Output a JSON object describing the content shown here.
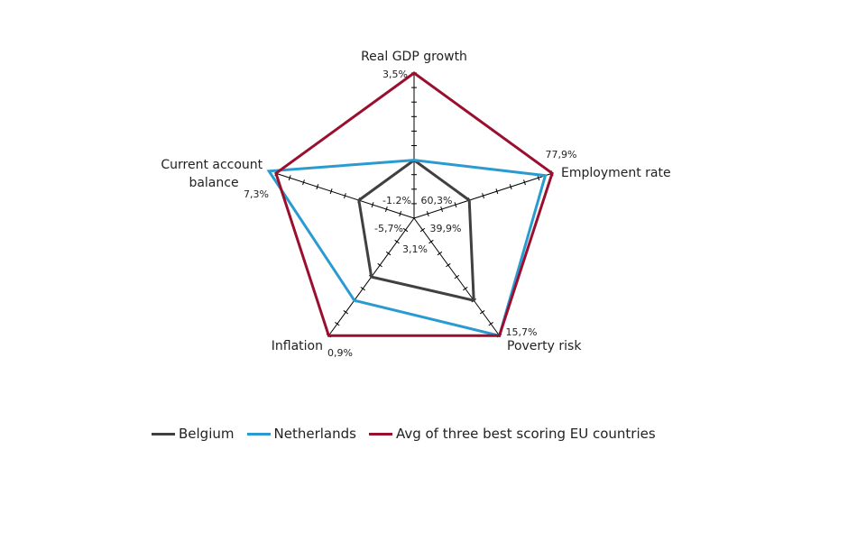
{
  "chart_data": {
    "type": "radar",
    "axes": [
      {
        "name": "Real GDP growth",
        "min_label": "-1.2%",
        "max_label": "3,5%"
      },
      {
        "name": "Employment rate",
        "min_label": "60,3%",
        "max_label": "77,9%"
      },
      {
        "name": "Poverty risk",
        "min_label": "39,9%",
        "max_label": "15,7%"
      },
      {
        "name": "Inflation",
        "min_label": "3,1%",
        "max_label": "0,9%"
      },
      {
        "name": "Current account balance",
        "min_label": "-5,7%",
        "max_label": "7,3%"
      }
    ],
    "axis_min": 0,
    "axis_max": 1,
    "tick_count": 10,
    "series": [
      {
        "name": "Belgium",
        "color": "#404040",
        "values": [
          0.4,
          0.4,
          0.7,
          0.5,
          0.4
        ]
      },
      {
        "name": "Netherlands",
        "color": "#2a9bd1",
        "values": [
          0.4,
          0.95,
          1.0,
          0.7,
          1.05
        ]
      },
      {
        "name": "Avg of three best scoring EU countries",
        "color": "#9a0f2e",
        "values": [
          1.0,
          1.0,
          1.0,
          1.0,
          1.0
        ]
      }
    ],
    "legend_position": "bottom"
  }
}
